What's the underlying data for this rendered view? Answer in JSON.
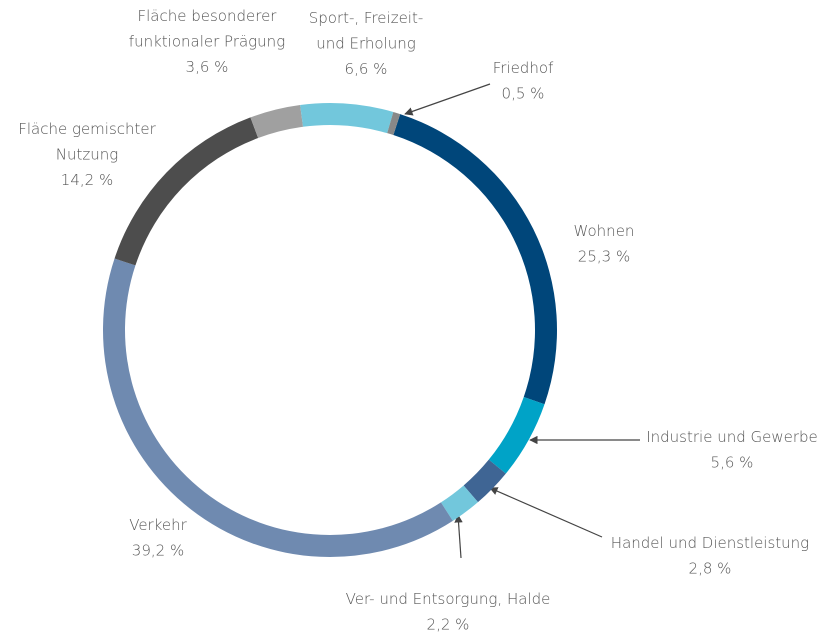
{
  "chart_data": {
    "type": "donut",
    "categories": [
      "Wohnen",
      "Industrie und Gewerbe",
      "Handel und Dienstleistung",
      "Ver- und Entsorgung, Halde",
      "Verkehr",
      "Fläche gemischter Nutzung",
      "Fläche besonderer funktionaler Prägung",
      "Sport-, Freizeit- und Erholung",
      "Friedhof"
    ],
    "values": [
      25.3,
      5.6,
      2.8,
      2.2,
      39.2,
      14.2,
      3.6,
      6.6,
      0.5
    ],
    "value_labels": [
      "25,3 %",
      "5,6 %",
      "2,8 %",
      "2,2 %",
      "39,2 %",
      "14,2 %",
      "3,6 %",
      "6,6 %",
      "0,5 %"
    ],
    "colors": [
      "#00467a",
      "#00a3c7",
      "#3f6594",
      "#72c7dc",
      "#6f8ab0",
      "#4d4d4d",
      "#a0a0a0",
      "#72c7dc",
      "#888888"
    ]
  }
}
